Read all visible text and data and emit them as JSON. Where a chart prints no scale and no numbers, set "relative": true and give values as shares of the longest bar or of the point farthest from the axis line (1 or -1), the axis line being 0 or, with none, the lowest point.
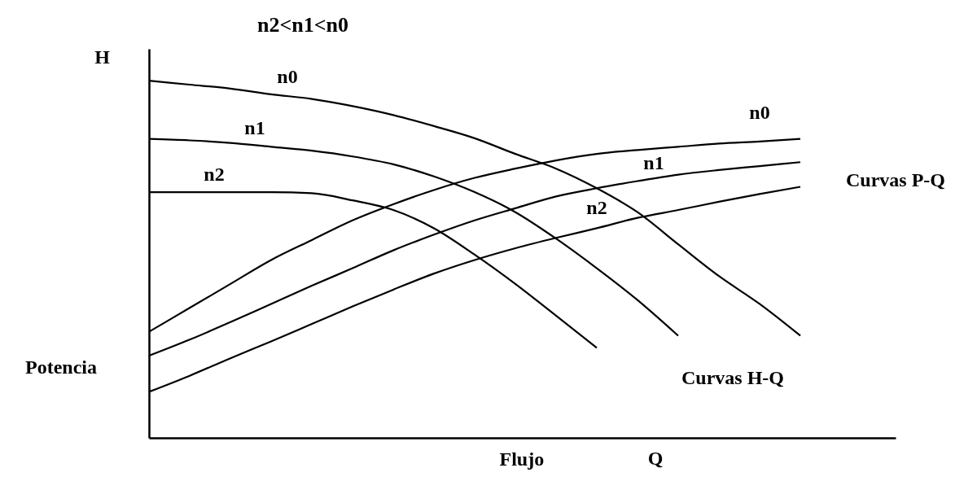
{
  "chart_data": {
    "type": "line",
    "title": "n2<n1<n0",
    "xlabel": "Flujo",
    "ylabel": "H",
    "relative": true,
    "legend": false,
    "grid": false,
    "annotations": [
      "Potencia",
      "Q",
      "Curvas P-Q",
      "Curvas H-Q"
    ],
    "categories": [
      null,
      null,
      null,
      null,
      null,
      null,
      null,
      null,
      null,
      null,
      null,
      null,
      null,
      null,
      null,
      null,
      null
    ],
    "series": [
      {
        "name": "n0",
        "color": "#000000",
        "values": [
          1,
          0.989,
          0.978,
          0.962,
          0.949,
          0.929,
          0.904,
          0.873,
          0.839,
          0.795,
          0.754,
          0.699,
          0.632,
          0.542,
          0.453,
          0.375,
          0.286
        ]
      },
      {
        "name": "n1",
        "color": "#000000",
        "values": [
          0.837,
          0.833,
          0.826,
          0.815,
          0.804,
          0.788,
          0.766,
          0.732,
          0.688,
          0.632,
          0.558,
          0.475,
          0.386,
          0.286,
          null,
          null,
          null
        ]
      },
      {
        "name": "n2",
        "color": "#000000",
        "values": [
          0.688,
          0.688,
          0.688,
          0.688,
          0.685,
          0.665,
          0.638,
          0.587,
          0.513,
          0.431,
          0.342,
          0.252,
          null,
          null,
          null,
          null,
          null
        ]
      },
      {
        "name": "n0",
        "color": "#000000",
        "values": [
          0.297,
          0.364,
          0.431,
          0.498,
          0.554,
          0.609,
          0.654,
          0.694,
          0.728,
          0.754,
          0.777,
          0.795,
          0.806,
          0.815,
          0.824,
          0.83,
          0.837
        ]
      },
      {
        "name": "n1",
        "color": "#000000",
        "values": [
          0.23,
          0.275,
          0.324,
          0.375,
          0.426,
          0.475,
          0.525,
          0.569,
          0.609,
          0.643,
          0.676,
          0.699,
          0.719,
          0.737,
          0.75,
          0.761,
          0.772
        ]
      },
      {
        "name": "n2",
        "color": "#000000",
        "values": [
          0.129,
          0.174,
          0.223,
          0.27,
          0.319,
          0.368,
          0.415,
          0.46,
          0.498,
          0.531,
          0.56,
          0.587,
          0.616,
          0.638,
          0.661,
          0.683,
          0.703
        ]
      }
    ]
  }
}
